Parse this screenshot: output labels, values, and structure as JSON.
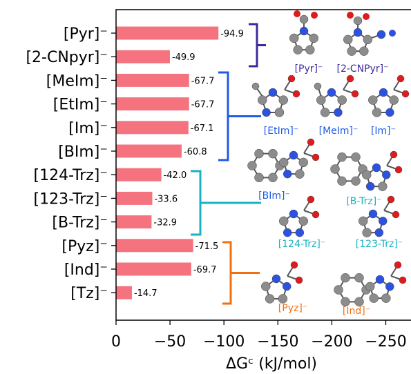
{
  "chart_data": {
    "type": "bar",
    "orientation": "horizontal",
    "categories": [
      "[Pyr]⁻",
      "[2-CNpyr]⁻",
      "[MeIm]⁻",
      "[EtIm]⁻",
      "[Im]⁻",
      "[BIm]⁻",
      "[124-Trz]⁻",
      "[123-Trz]⁻",
      "[B-Trz]⁻",
      "[Pyz]⁻",
      "[Ind]⁻",
      "[Tz]⁻"
    ],
    "values": [
      -94.9,
      -49.9,
      -67.7,
      -67.7,
      -67.1,
      -60.8,
      -42.0,
      -33.6,
      -32.9,
      -71.5,
      -69.7,
      -14.7
    ],
    "value_labels": [
      "-94.9",
      "-49.9",
      "-67.7",
      "-67.7",
      "-67.1",
      "-60.8",
      "-42.0",
      "-33.6",
      "-32.9",
      "-71.5",
      "-69.7",
      "-14.7"
    ],
    "bar_color": "#f4737f",
    "xlabel": "ΔGᶜ  (kJ/mol)",
    "xlim": [
      0,
      -270
    ],
    "x_ticks": [
      0,
      -50,
      -100,
      -150,
      -200,
      -250
    ],
    "x_tick_labels": [
      "0",
      "−50",
      "−100",
      "−150",
      "−200",
      "−250"
    ],
    "grid": false,
    "groups": [
      {
        "members": [
          "[Pyr]⁻",
          "[2-CNpyr]⁻"
        ],
        "color": "#3b2a9e"
      },
      {
        "members": [
          "[MeIm]⁻",
          "[EtIm]⁻",
          "[Im]⁻",
          "[BIm]⁻"
        ],
        "color": "#1f5be6"
      },
      {
        "members": [
          "[124-Trz]⁻",
          "[123-Trz]⁻",
          "[B-Trz]⁻"
        ],
        "color": "#17b3c2"
      },
      {
        "members": [
          "[Pyz]⁻",
          "[Ind]⁻",
          "[Tz]⁻"
        ],
        "color": "#f07010"
      }
    ],
    "structure_labels": [
      {
        "text": "[Pyr]⁻",
        "color": "#3b2a9e"
      },
      {
        "text": "[2-CNPyr]⁻",
        "color": "#3b2a9e"
      },
      {
        "text": "[EtIm]⁻",
        "color": "#1f5be6"
      },
      {
        "text": "[MeIm]⁻",
        "color": "#1f5be6"
      },
      {
        "text": "[Im]⁻",
        "color": "#1f5be6"
      },
      {
        "text": "[BIm]⁻",
        "color": "#1f5be6"
      },
      {
        "text": "[B-Trz]⁻",
        "color": "#17b3c2"
      },
      {
        "text": "[124-Trz]⁻",
        "color": "#17b3c2"
      },
      {
        "text": "[123-Trz]⁻",
        "color": "#17b3c2"
      },
      {
        "text": "[Pyz]⁻",
        "color": "#f07010"
      },
      {
        "text": "[Ind]⁻",
        "color": "#f07010"
      }
    ],
    "atom_colors": {
      "carbon": "#8c8c8c",
      "nitrogen": "#2b52e0",
      "oxygen": "#e01b1b",
      "hydrogen": "#f0f0f0"
    }
  }
}
